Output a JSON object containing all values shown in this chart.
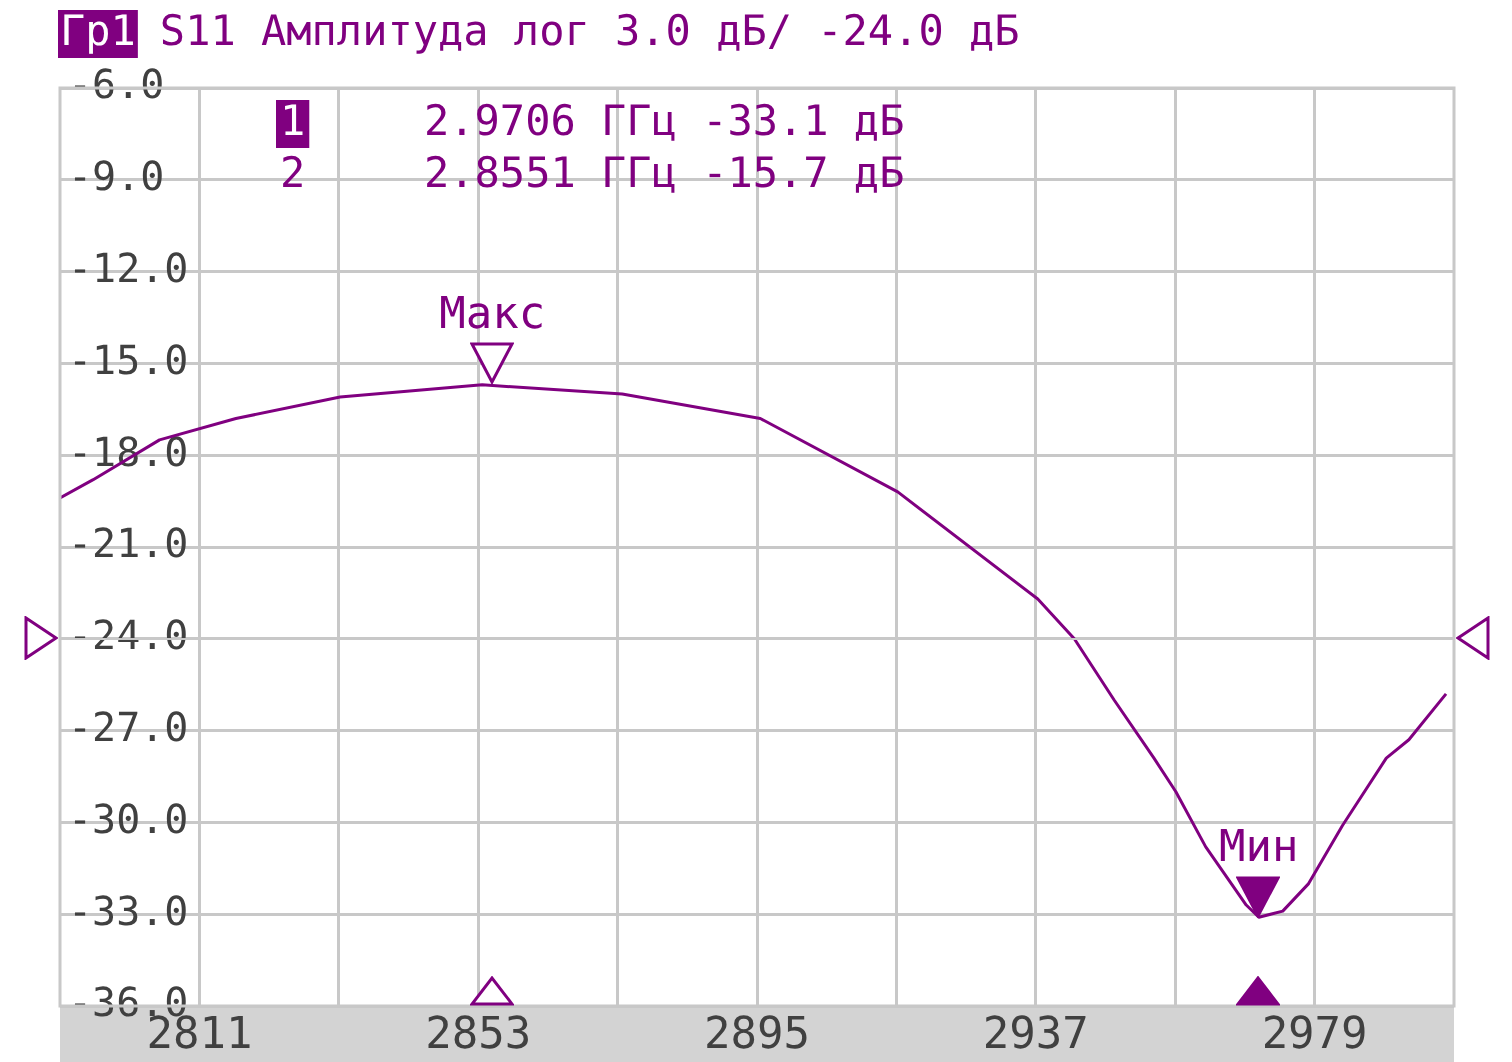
{
  "chart_data": {
    "type": "line",
    "title": "S11 Амплитуда лог 3.0 дБ/ -24.0 дБ",
    "x": [
      2790,
      2795,
      2805,
      2816.5,
      2832.2,
      2853.6,
      2874.7,
      2895.5,
      2916.2,
      2937.3,
      2942.8,
      2948.8,
      2954.8,
      2958.1,
      2962.6,
      2968.7,
      2970.6,
      2974.2,
      2978.1,
      2983.2,
      2989.8,
      2993.2,
      2998.8
    ],
    "series": [
      {
        "color": "#800080",
        "values": [
          -19.4,
          -18.8,
          -17.5,
          -16.8,
          -16.1,
          -15.7,
          -16.0,
          -16.8,
          -19.2,
          -22.7,
          -24.0,
          -26.0,
          -27.9,
          -29.0,
          -30.8,
          -32.7,
          -33.1,
          -32.9,
          -32.0,
          -30.1,
          -27.9,
          -27.3,
          -25.8
        ]
      }
    ],
    "xlim": [
      2790,
      3000
    ],
    "xticks": [
      2811,
      {
        "value": 2832,
        "label": null
      },
      2853,
      {
        "value": 2874,
        "label": null
      },
      2895,
      {
        "value": 2916,
        "label": null
      },
      2937,
      {
        "value": 2958,
        "label": null
      },
      2979
    ],
    "ylim": [
      -36,
      -6
    ],
    "yticks": [
      {
        "value": -6,
        "label": "-6.0"
      },
      {
        "value": -9,
        "label": "-9.0"
      },
      {
        "value": -12,
        "label": "-12.0"
      },
      {
        "value": -15,
        "label": "-15.0"
      },
      {
        "value": -18,
        "label": "-18.0"
      },
      {
        "value": -21,
        "label": "-21.0"
      },
      {
        "value": -24,
        "label": "-24.0"
      },
      {
        "value": -27,
        "label": "-27.0"
      },
      {
        "value": -30,
        "label": "-30.0"
      },
      {
        "value": -33,
        "label": "-33.0"
      },
      {
        "value": -36,
        "label": "-36.0"
      }
    ],
    "ref_lines": [
      {
        "axis": "y",
        "value": -24,
        "color": "#c8c8c8"
      }
    ],
    "annotations": [
      "Гр1",
      "1",
      "2.9706 ГГц -33.1 дБ",
      "2",
      "2.8551 ГГц -15.7 дБ",
      {
        "text": "Мин",
        "x": 2970.6,
        "y": -33.1
      },
      {
        "text": "Макс",
        "x": 2855.1,
        "y": -15.7
      }
    ],
    "grid": true,
    "legend": false,
    "marker": "none",
    "line_style": "solid"
  }
}
